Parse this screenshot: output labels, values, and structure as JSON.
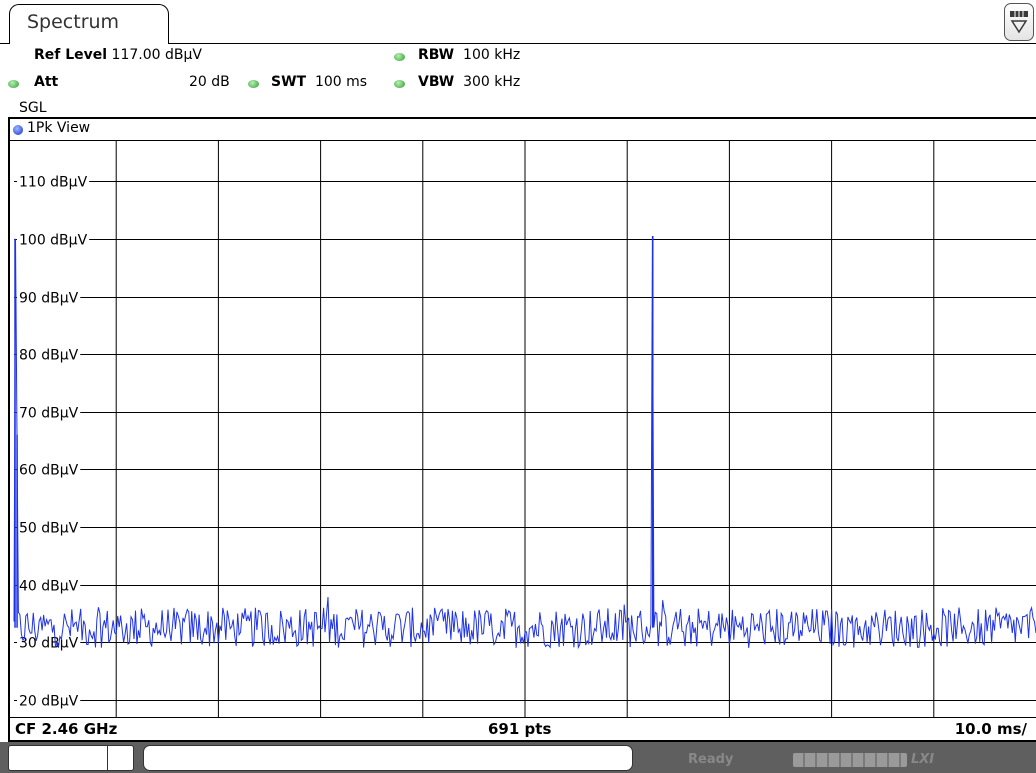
{
  "tab": {
    "label": "Spectrum"
  },
  "menu_icon": "dropdown-menu-icon",
  "settings": {
    "ref_level_label": "Ref Level",
    "ref_level_value": "117.00 dBµV",
    "rbw_label": "RBW",
    "rbw_value": "100 kHz",
    "att_label": "Att",
    "att_value": "20 dB",
    "swt_label": "SWT",
    "swt_value": "100 ms",
    "vbw_label": "VBW",
    "vbw_value": "300 kHz",
    "mode": "SGL"
  },
  "view": {
    "title": "1Pk View"
  },
  "footer": {
    "cf": "CF 2.46 GHz",
    "points": "691 pts",
    "division": "10.0 ms/"
  },
  "status": {
    "ready": "Ready",
    "lxi": "LXI"
  },
  "colors": {
    "trace": "#1f33e6",
    "indicator_green": "#2f9a35",
    "status_bar": "#5f5f5f"
  },
  "chart_data": {
    "type": "line",
    "title": "",
    "xlabel": "",
    "ylabel": "",
    "ylim": [
      17,
      117
    ],
    "xlim": [
      0,
      100
    ],
    "x_unit": "ms",
    "grid": true,
    "y_ticks": [
      {
        "value": 110,
        "label": "110 dBµV"
      },
      {
        "value": 100,
        "label": "100 dBµV"
      },
      {
        "value": 90,
        "label": "90 dBµV"
      },
      {
        "value": 80,
        "label": "80 dBµV"
      },
      {
        "value": 70,
        "label": "70 dBµV"
      },
      {
        "value": 60,
        "label": "60 dBµV"
      },
      {
        "value": 50,
        "label": "50 dBµV"
      },
      {
        "value": 40,
        "label": "40 dBµV"
      },
      {
        "value": 30,
        "label": "30 dBµV"
      },
      {
        "value": 20,
        "label": "20 dBµV"
      }
    ],
    "series": [
      {
        "noise_floor_dbuv": 32.5,
        "noise_spread_dbuv": 3.5,
        "peaks": [
          {
            "x_ms": 0.1,
            "value_dbuv": 100
          },
          {
            "x_ms": 0.3,
            "value_dbuv": 66
          },
          {
            "x_ms": 62.5,
            "value_dbuv": 100.5
          }
        ]
      }
    ]
  }
}
